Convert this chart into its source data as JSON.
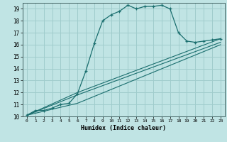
{
  "xlabel": "Humidex (Indice chaleur)",
  "bg_color": "#c0e4e4",
  "grid_color": "#a0cccc",
  "line_color": "#1a6e6e",
  "xlim": [
    -0.5,
    23.5
  ],
  "ylim": [
    10,
    19.5
  ],
  "xticks": [
    0,
    1,
    2,
    3,
    4,
    5,
    6,
    7,
    8,
    9,
    10,
    11,
    12,
    13,
    14,
    15,
    16,
    17,
    18,
    19,
    20,
    21,
    22,
    23
  ],
  "yticks": [
    10,
    11,
    12,
    13,
    14,
    15,
    16,
    17,
    18,
    19
  ],
  "series0": {
    "x": [
      0,
      1,
      2,
      3,
      4,
      5,
      6,
      7,
      8,
      9,
      10,
      11,
      12,
      13,
      14,
      15,
      16,
      17,
      18,
      19,
      20,
      21,
      22,
      23
    ],
    "y": [
      10.1,
      10.5,
      10.5,
      10.7,
      11.0,
      11.1,
      11.9,
      13.8,
      16.1,
      18.0,
      18.5,
      18.8,
      19.3,
      19.0,
      19.2,
      19.2,
      19.3,
      19.0,
      17.0,
      16.3,
      16.2,
      16.3,
      16.4,
      16.5
    ]
  },
  "straight_lines": [
    {
      "x": [
        0,
        6,
        23
      ],
      "y": [
        10.1,
        12.0,
        16.5
      ]
    },
    {
      "x": [
        0,
        6,
        23
      ],
      "y": [
        10.1,
        11.8,
        16.2
      ]
    },
    {
      "x": [
        0,
        6,
        23
      ],
      "y": [
        10.1,
        11.1,
        16.0
      ]
    }
  ]
}
